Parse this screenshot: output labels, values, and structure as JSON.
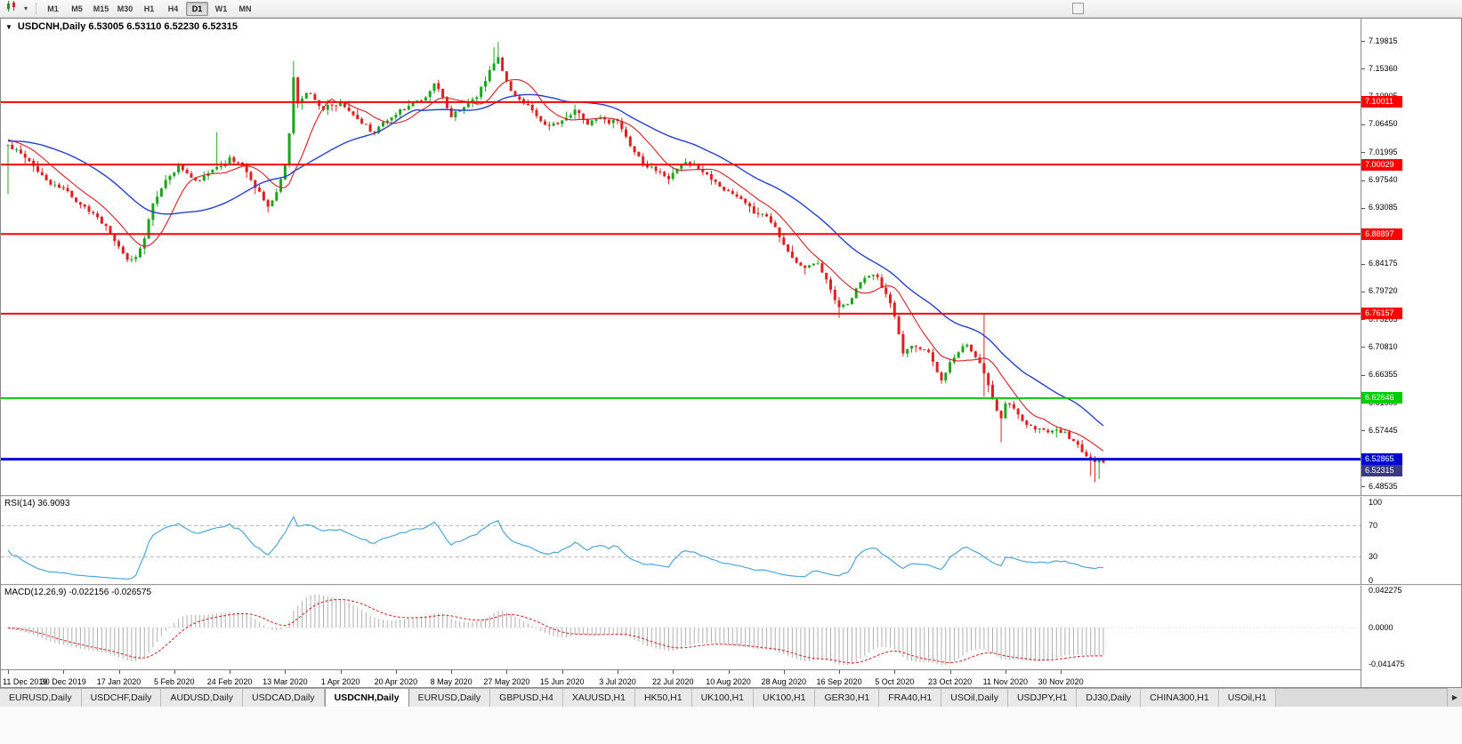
{
  "toolbar": {
    "chart_type_icon": "candlestick-chart",
    "caret_icon": "▾",
    "timeframes": [
      "M1",
      "M5",
      "M15",
      "M30",
      "H1",
      "H4",
      "D1",
      "W1",
      "MN"
    ],
    "active_timeframe": "D1"
  },
  "chart": {
    "menu_icon": "▼",
    "title_line": "USDCNH,Daily  6.53005 6.53110 6.52230 6.52315",
    "price_axis": [
      "7.19815",
      "7.15360",
      "7.10905",
      "7.06450",
      "7.01995",
      "6.97540",
      "6.93085",
      "6.88630",
      "6.84175",
      "6.79720",
      "6.75265",
      "6.70810",
      "6.66355",
      "6.61900",
      "6.57445",
      "6.52990",
      "6.48535"
    ],
    "hlines": [
      {
        "label": "7.10011",
        "value": 7.10011,
        "color": "#FF0000",
        "width": 2
      },
      {
        "label": "7.00029",
        "value": 7.00029,
        "color": "#FF0000",
        "width": 2
      },
      {
        "label": "6.88897",
        "value": 6.88897,
        "color": "#FF0000",
        "width": 2
      },
      {
        "label": "6.76157",
        "value": 6.76157,
        "color": "#FF0000",
        "width": 2
      },
      {
        "label": "6.62646",
        "value": 6.62646,
        "color": "#00CC00",
        "width": 2
      },
      {
        "label": "6.52865",
        "value": 6.52865,
        "color": "#0000D8",
        "width": 3
      }
    ],
    "bid_tag": {
      "label": "6.52315",
      "value": 6.52315,
      "color": "#3A3A80"
    },
    "dates": [
      "11 Dec 2019",
      "30 Dec 2019",
      "17 Jan 2020",
      "5 Feb 2020",
      "24 Feb 2020",
      "13 Mar 2020",
      "1 Apr 2020",
      "20 Apr 2020",
      "8 May 2020",
      "27 May 2020",
      "15 Jun 2020",
      "3 Jul 2020",
      "22 Jul 2020",
      "10 Aug 2020",
      "28 Aug 2020",
      "16 Sep 2020",
      "5 Oct 2020",
      "23 Oct 2020",
      "11 Nov 2020",
      "30 Nov 2020"
    ]
  },
  "rsi": {
    "title": "RSI(14) 36.9093",
    "levels": [
      "100",
      "70",
      "30",
      "0"
    ]
  },
  "macd": {
    "title": "MACD(12,26,9) -0.022156 -0.026575",
    "levels": [
      "0.042275",
      "0.0000",
      "-0.041475"
    ]
  },
  "tabs": {
    "items": [
      "EURUSD,Daily",
      "USDCHF,Daily",
      "AUDUSD,Daily",
      "USDCAD,Daily",
      "USDCNH,Daily",
      "EURUSD,Daily",
      "GBPUSD,H4",
      "XAUUSD,H1",
      "HK50,H1",
      "UK100,H1",
      "UK100,H1",
      "GER30,H1",
      "FRA40,H1",
      "USOil,Daily",
      "USDJPY,H1",
      "DJ30,Daily",
      "CHINA300,H1",
      "USOil,H1"
    ],
    "active_index": 4,
    "scroll_right_icon": "▶"
  },
  "chart_data": {
    "type": "candlestick",
    "symbol": "USDCNH",
    "timeframe": "Daily",
    "count": 258,
    "ylim": [
      6.4712,
      7.2337
    ],
    "last_ohlc": [
      6.53005,
      6.5311,
      6.5223,
      6.52315
    ],
    "rsi_period": 14,
    "macd_params": [
      12,
      26,
      9
    ],
    "ma_fast_period": 10,
    "ma_slow_period": 30,
    "noise_amp": 0.008,
    "anchors": [
      [
        -60,
        7.09
      ],
      [
        -45,
        7.05
      ],
      [
        -30,
        7.028
      ],
      [
        -15,
        7.042
      ],
      [
        -8,
        7.046
      ],
      [
        0,
        7.032
      ],
      [
        3,
        7.018
      ],
      [
        6,
        6.998
      ],
      [
        9,
        6.975
      ],
      [
        13,
        6.962
      ],
      [
        17,
        6.936
      ],
      [
        21,
        6.916
      ],
      [
        23,
        6.902
      ],
      [
        25,
        6.878
      ],
      [
        28,
        6.848
      ],
      [
        30,
        6.852
      ],
      [
        32,
        6.882
      ],
      [
        34,
        6.938
      ],
      [
        36,
        6.962
      ],
      [
        38,
        6.982
      ],
      [
        40,
        7.0
      ],
      [
        42,
        6.986
      ],
      [
        44,
        6.975
      ],
      [
        46,
        6.982
      ],
      [
        48,
        6.992
      ],
      [
        50,
        6.998
      ],
      [
        52,
        7.012
      ],
      [
        54,
        7.004
      ],
      [
        56,
        6.988
      ],
      [
        58,
        6.963
      ],
      [
        61,
        6.933
      ],
      [
        63,
        6.956
      ],
      [
        65,
        7.0
      ],
      [
        66,
        7.05
      ],
      [
        67,
        7.14
      ],
      [
        68,
        7.098
      ],
      [
        70,
        7.115
      ],
      [
        72,
        7.104
      ],
      [
        74,
        7.088
      ],
      [
        76,
        7.096
      ],
      [
        78,
        7.1
      ],
      [
        80,
        7.086
      ],
      [
        83,
        7.066
      ],
      [
        86,
        7.052
      ],
      [
        88,
        7.068
      ],
      [
        91,
        7.08
      ],
      [
        94,
        7.094
      ],
      [
        97,
        7.102
      ],
      [
        100,
        7.13
      ],
      [
        102,
        7.108
      ],
      [
        104,
        7.076
      ],
      [
        107,
        7.092
      ],
      [
        110,
        7.108
      ],
      [
        112,
        7.134
      ],
      [
        114,
        7.162
      ],
      [
        115,
        7.172
      ],
      [
        116,
        7.15
      ],
      [
        118,
        7.118
      ],
      [
        121,
        7.098
      ],
      [
        124,
        7.078
      ],
      [
        127,
        7.062
      ],
      [
        130,
        7.071
      ],
      [
        133,
        7.088
      ],
      [
        136,
        7.064
      ],
      [
        139,
        7.075
      ],
      [
        141,
        7.066
      ],
      [
        143,
        7.07
      ],
      [
        145,
        7.045
      ],
      [
        147,
        7.02
      ],
      [
        149,
        7.0
      ],
      [
        152,
        6.99
      ],
      [
        155,
        6.977
      ],
      [
        157,
        6.993
      ],
      [
        159,
        7.004
      ],
      [
        161,
        7.0
      ],
      [
        163,
        6.988
      ],
      [
        165,
        6.976
      ],
      [
        167,
        6.965
      ],
      [
        169,
        6.958
      ],
      [
        172,
        6.945
      ],
      [
        175,
        6.922
      ],
      [
        178,
        6.917
      ],
      [
        180,
        6.9
      ],
      [
        182,
        6.872
      ],
      [
        185,
        6.843
      ],
      [
        187,
        6.835
      ],
      [
        190,
        6.842
      ],
      [
        193,
        6.8
      ],
      [
        195,
        6.772
      ],
      [
        197,
        6.777
      ],
      [
        200,
        6.812
      ],
      [
        202,
        6.822
      ],
      [
        204,
        6.82
      ],
      [
        206,
        6.793
      ],
      [
        208,
        6.757
      ],
      [
        210,
        6.698
      ],
      [
        212,
        6.71
      ],
      [
        214,
        6.705
      ],
      [
        216,
        6.7
      ],
      [
        218,
        6.668
      ],
      [
        219,
        6.655
      ],
      [
        221,
        6.684
      ],
      [
        223,
        6.7
      ],
      [
        225,
        6.712
      ],
      [
        227,
        6.692
      ],
      [
        229,
        6.666
      ],
      [
        231,
        6.625
      ],
      [
        233,
        6.594
      ],
      [
        234,
        6.618
      ],
      [
        236,
        6.61
      ],
      [
        238,
        6.59
      ],
      [
        240,
        6.582
      ],
      [
        242,
        6.578
      ],
      [
        244,
        6.572
      ],
      [
        246,
        6.576
      ],
      [
        248,
        6.572
      ],
      [
        250,
        6.558
      ],
      [
        252,
        6.54
      ],
      [
        254,
        6.53
      ],
      [
        256,
        6.526
      ],
      [
        257,
        6.52315
      ]
    ],
    "wick_overrides": [
      [
        0,
        "low",
        6.953
      ],
      [
        49,
        "high",
        7.052
      ],
      [
        67,
        "high",
        7.166
      ],
      [
        114,
        "high",
        7.188
      ],
      [
        115,
        "high",
        7.1965
      ],
      [
        195,
        "low",
        6.755
      ],
      [
        229,
        "high",
        6.761
      ],
      [
        229,
        "low",
        6.629
      ],
      [
        233,
        "low",
        6.556
      ],
      [
        254,
        "low",
        6.502
      ],
      [
        255,
        "low",
        6.492
      ],
      [
        256,
        "low",
        6.497
      ]
    ],
    "colors": {
      "up": "#1CA51C",
      "down": "#E02020",
      "ma_fast": "#D41F1F",
      "ma_slow": "#2440CF",
      "rsi": "#4DA6D8",
      "rsi_levels": "#B4B4B4",
      "macd_hist": "#AFAFAF",
      "macd_signal": "#D02020"
    }
  }
}
